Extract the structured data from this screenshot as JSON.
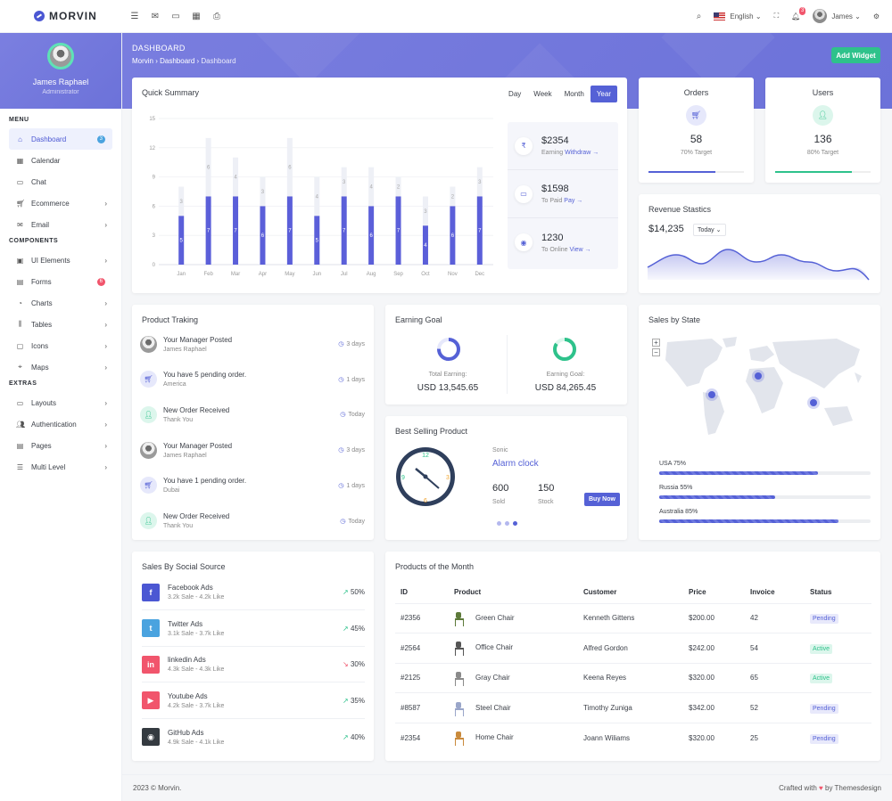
{
  "brand": {
    "name": "MORVIN"
  },
  "topbar": {
    "language": "English",
    "notif_count": "3",
    "user_name": "James"
  },
  "sidebar": {
    "user_name": "James Raphael",
    "user_role": "Administrator",
    "sections": [
      {
        "title": "MENU",
        "items": [
          {
            "label": "Dashboard",
            "icon": "home-icon",
            "badge": "3",
            "badge_color": "#4aa3df",
            "active": true
          },
          {
            "label": "Calendar",
            "icon": "calendar-icon"
          },
          {
            "label": "Chat",
            "icon": "chat-icon"
          },
          {
            "label": "Ecommerce",
            "icon": "cart-icon",
            "chevron": true
          },
          {
            "label": "Email",
            "icon": "mail-icon",
            "chevron": true
          }
        ]
      },
      {
        "title": "COMPONENTS",
        "items": [
          {
            "label": "UI Elements",
            "icon": "briefcase-icon",
            "chevron": true
          },
          {
            "label": "Forms",
            "icon": "form-icon",
            "badge": "6",
            "badge_color": "#f1556c"
          },
          {
            "label": "Charts",
            "icon": "chart-icon",
            "chevron": true
          },
          {
            "label": "Tables",
            "icon": "table-icon",
            "chevron": true
          },
          {
            "label": "Icons",
            "icon": "box-icon",
            "chevron": true
          },
          {
            "label": "Maps",
            "icon": "map-icon",
            "chevron": true
          }
        ]
      },
      {
        "title": "EXTRAS",
        "items": [
          {
            "label": "Layouts",
            "icon": "monitor-icon",
            "chevron": true
          },
          {
            "label": "Authentication",
            "icon": "users-icon",
            "chevron": true
          },
          {
            "label": "Pages",
            "icon": "pages-icon",
            "chevron": true
          },
          {
            "label": "Multi Level",
            "icon": "list-icon",
            "chevron": true
          }
        ]
      }
    ]
  },
  "header": {
    "title": "DASHBOARD",
    "crumbs": [
      "Morvin",
      "Dashboard",
      "Dashboard"
    ],
    "add_widget": "Add Widget"
  },
  "quick_summary": {
    "title": "Quick Summary",
    "tabs": [
      "Day",
      "Week",
      "Month",
      "Year"
    ],
    "active_tab": "Year",
    "stats": [
      {
        "value": "$2354",
        "label": "Earning",
        "link": "Withdraw",
        "icon": "rupee-icon"
      },
      {
        "value": "$1598",
        "label": "To Paid",
        "link": "Pay",
        "icon": "card-icon"
      },
      {
        "value": "1230",
        "label": "To Online",
        "link": "View",
        "icon": "eye-icon"
      }
    ]
  },
  "chart_data": {
    "type": "bar",
    "categories": [
      "Jan",
      "Feb",
      "Mar",
      "Apr",
      "May",
      "Jun",
      "Jul",
      "Aug",
      "Sep",
      "Oct",
      "Nov",
      "Dec"
    ],
    "series": [
      {
        "values": [
          5,
          7,
          7,
          6,
          7,
          5,
          7,
          6,
          7,
          4,
          6,
          7
        ],
        "color": "#5b5fd9"
      },
      {
        "values": [
          3,
          6,
          4,
          3,
          6,
          4,
          3,
          4,
          2,
          3,
          2,
          3
        ],
        "color": "#eef0f6"
      }
    ],
    "stacked": true,
    "yticks": [
      0,
      3,
      6,
      9,
      12,
      15
    ],
    "ylim": [
      0,
      15
    ]
  },
  "orders": {
    "title": "Orders",
    "value": "58",
    "sub": "70% Target",
    "progress": 0.7,
    "color": "#5561d6"
  },
  "users": {
    "title": "Users",
    "value": "136",
    "sub": "80% Target",
    "progress": 0.8,
    "color": "#2ec28b"
  },
  "revenue": {
    "title": "Revenue Stastics",
    "value": "$14,235",
    "period": "Today"
  },
  "product_tracking": {
    "title": "Product Traking",
    "items": [
      {
        "title": "Your Manager Posted",
        "sub": "James Raphael",
        "time": "3 days",
        "type": "avatar"
      },
      {
        "title": "You have 5 pending order.",
        "sub": "America",
        "time": "1 days",
        "type": "cart"
      },
      {
        "title": "New Order Received",
        "sub": "Thank You",
        "time": "Today",
        "type": "user"
      },
      {
        "title": "Your Manager Posted",
        "sub": "James Raphael",
        "time": "3 days",
        "type": "avatar"
      },
      {
        "title": "You have 1 pending order.",
        "sub": "Dubai",
        "time": "1 days",
        "type": "cart"
      },
      {
        "title": "New Order Received",
        "sub": "Thank You",
        "time": "Today",
        "type": "user"
      }
    ]
  },
  "earning_goal": {
    "title": "Earning Goal",
    "total_label": "Total Earning:",
    "total_value": "USD 13,545.65",
    "goal_label": "Earning Goal:",
    "goal_value": "USD 84,265.45"
  },
  "best_selling": {
    "title": "Best Selling Product",
    "brand": "Sonic",
    "name": "Alarm clock",
    "sold": "600",
    "sold_label": "Sold",
    "stock": "150",
    "stock_label": "Stock",
    "button": "Buy Now"
  },
  "sales_state": {
    "title": "Sales by State",
    "items": [
      {
        "label": "USA 75%",
        "value": 0.75
      },
      {
        "label": "Russia 55%",
        "value": 0.55
      },
      {
        "label": "Australia 85%",
        "value": 0.85
      }
    ]
  },
  "social": {
    "title": "Sales By Social Source",
    "items": [
      {
        "name": "Facebook Ads",
        "sub": "3.2k Sale - 4.2k Like",
        "pct": "50%",
        "dir": "up",
        "color": "#4b57d3",
        "glyph": "f",
        "icon": "facebook-icon"
      },
      {
        "name": "Twitter Ads",
        "sub": "3.1k Sale - 3.7k Like",
        "pct": "45%",
        "dir": "up",
        "color": "#4aa3df",
        "glyph": "t",
        "icon": "twitter-icon"
      },
      {
        "name": "linkedin Ads",
        "sub": "4.3k Sale - 4.3k Like",
        "pct": "30%",
        "dir": "down",
        "color": "#f1556c",
        "glyph": "in",
        "icon": "linkedin-icon"
      },
      {
        "name": "Youtube Ads",
        "sub": "4.2k Sale - 3.7k Like",
        "pct": "35%",
        "dir": "up",
        "color": "#f1556c",
        "glyph": "▶",
        "icon": "youtube-icon"
      },
      {
        "name": "GitHub Ads",
        "sub": "4.9k Sale - 4.1k Like",
        "pct": "40%",
        "dir": "up",
        "color": "#343a40",
        "glyph": "◉",
        "icon": "github-icon"
      }
    ]
  },
  "products": {
    "title": "Products of the Month",
    "columns": [
      "ID",
      "Product",
      "Customer",
      "Price",
      "Invoice",
      "Status"
    ],
    "rows": [
      {
        "id": "#2356",
        "product": "Green Chair",
        "customer": "Kenneth Gittens",
        "price": "$200.00",
        "invoice": "42",
        "status": "Pending",
        "chair_color": "#5d7a3a"
      },
      {
        "id": "#2564",
        "product": "Office Chair",
        "customer": "Alfred Gordon",
        "price": "$242.00",
        "invoice": "54",
        "status": "Active",
        "chair_color": "#555555"
      },
      {
        "id": "#2125",
        "product": "Gray Chair",
        "customer": "Keena Reyes",
        "price": "$320.00",
        "invoice": "65",
        "status": "Active",
        "chair_color": "#8a8a8a"
      },
      {
        "id": "#8587",
        "product": "Steel Chair",
        "customer": "Timothy Zuniga",
        "price": "$342.00",
        "invoice": "52",
        "status": "Pending",
        "chair_color": "#9aa6c9"
      },
      {
        "id": "#2354",
        "product": "Home Chair",
        "customer": "Joann Wiliams",
        "price": "$320.00",
        "invoice": "25",
        "status": "Pending",
        "chair_color": "#c98a3c"
      }
    ]
  },
  "footer": {
    "left": "2023 © Morvin.",
    "right_pre": "Crafted with",
    "right_post": "by Themesdesign"
  }
}
